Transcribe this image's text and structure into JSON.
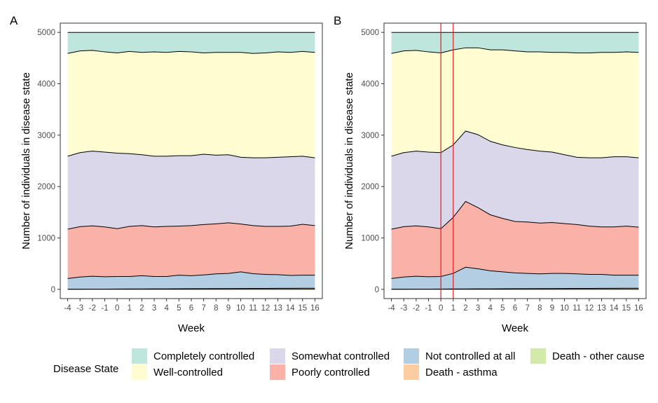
{
  "chart_data": [
    {
      "type": "area",
      "panel_label": "A",
      "stacked": true,
      "xlabel": "Week",
      "ylabel": "Number of individuals in disease state",
      "ylim": [
        0,
        5000
      ],
      "yticks": [
        0,
        1000,
        2000,
        3000,
        4000,
        5000
      ],
      "x": [
        -4,
        -3,
        -2,
        -1,
        0,
        1,
        2,
        3,
        4,
        5,
        6,
        7,
        8,
        9,
        10,
        11,
        12,
        13,
        14,
        15,
        16
      ],
      "vlines": [],
      "boundaries": {
        "Death - other cause": [
          0,
          0,
          0,
          0,
          0,
          0,
          0,
          0,
          0,
          0,
          0,
          0,
          0,
          0,
          0,
          0,
          0,
          0,
          0,
          0,
          0
        ],
        "Death - asthma": [
          2,
          3,
          4,
          5,
          6,
          7,
          8,
          9,
          10,
          11,
          12,
          13,
          14,
          15,
          16,
          17,
          18,
          19,
          20,
          21,
          22
        ],
        "Not controlled at all": [
          210,
          240,
          255,
          245,
          250,
          250,
          265,
          250,
          250,
          275,
          265,
          280,
          300,
          310,
          340,
          305,
          290,
          285,
          270,
          275,
          275
        ],
        "Poorly controlled": [
          1170,
          1220,
          1235,
          1215,
          1180,
          1225,
          1240,
          1215,
          1225,
          1230,
          1240,
          1260,
          1275,
          1295,
          1270,
          1240,
          1225,
          1225,
          1230,
          1265,
          1240
        ],
        "Somewhat controlled": [
          2590,
          2660,
          2690,
          2670,
          2650,
          2640,
          2620,
          2590,
          2590,
          2600,
          2600,
          2630,
          2610,
          2620,
          2570,
          2560,
          2560,
          2570,
          2580,
          2590,
          2560
        ],
        "Well-controlled": [
          4590,
          4640,
          4650,
          4620,
          4600,
          4630,
          4610,
          4620,
          4610,
          4630,
          4620,
          4600,
          4610,
          4610,
          4610,
          4590,
          4600,
          4620,
          4610,
          4630,
          4610
        ],
        "Completely controlled": [
          5000,
          5000,
          5000,
          5000,
          5000,
          5000,
          5000,
          5000,
          5000,
          5000,
          5000,
          5000,
          5000,
          5000,
          5000,
          5000,
          5000,
          5000,
          5000,
          5000,
          5000
        ]
      },
      "grid": false
    },
    {
      "type": "area",
      "panel_label": "B",
      "stacked": true,
      "xlabel": "Week",
      "ylabel": "Number of individuals in disease state",
      "ylim": [
        0,
        5000
      ],
      "yticks": [
        0,
        1000,
        2000,
        3000,
        4000,
        5000
      ],
      "x": [
        -4,
        -3,
        -2,
        -1,
        0,
        1,
        2,
        3,
        4,
        5,
        6,
        7,
        8,
        9,
        10,
        11,
        12,
        13,
        14,
        15,
        16
      ],
      "vlines": [
        0,
        1
      ],
      "boundaries": {
        "Death - other cause": [
          0,
          0,
          0,
          0,
          0,
          0,
          0,
          0,
          0,
          0,
          0,
          0,
          0,
          0,
          0,
          0,
          0,
          0,
          0,
          0,
          0
        ],
        "Death - asthma": [
          2,
          3,
          4,
          5,
          6,
          7,
          8,
          9,
          10,
          11,
          12,
          13,
          14,
          15,
          16,
          17,
          18,
          19,
          20,
          21,
          22
        ],
        "Not controlled at all": [
          210,
          240,
          255,
          245,
          250,
          310,
          430,
          400,
          360,
          340,
          320,
          310,
          300,
          310,
          310,
          300,
          290,
          290,
          275,
          275,
          275
        ],
        "Poorly controlled": [
          1170,
          1220,
          1235,
          1215,
          1180,
          1400,
          1710,
          1590,
          1450,
          1380,
          1320,
          1310,
          1290,
          1300,
          1280,
          1260,
          1230,
          1215,
          1215,
          1230,
          1210
        ],
        "Somewhat controlled": [
          2590,
          2660,
          2690,
          2670,
          2660,
          2810,
          3080,
          3010,
          2880,
          2810,
          2760,
          2720,
          2690,
          2670,
          2620,
          2570,
          2560,
          2560,
          2580,
          2580,
          2560
        ],
        "Well-controlled": [
          4590,
          4640,
          4650,
          4620,
          4600,
          4660,
          4700,
          4700,
          4660,
          4660,
          4640,
          4620,
          4620,
          4610,
          4610,
          4600,
          4600,
          4610,
          4610,
          4620,
          4610
        ],
        "Completely controlled": [
          5000,
          5000,
          5000,
          5000,
          5000,
          5000,
          5000,
          5000,
          5000,
          5000,
          5000,
          5000,
          5000,
          5000,
          5000,
          5000,
          5000,
          5000,
          5000,
          5000,
          5000
        ]
      },
      "grid": false
    }
  ],
  "series_order_bottom_to_top": [
    "Death - other cause",
    "Death - asthma",
    "Not controlled at all",
    "Poorly controlled",
    "Somewhat controlled",
    "Well-controlled",
    "Completely controlled"
  ],
  "colors": {
    "Completely controlled": "#bfe6dd",
    "Well-controlled": "#fefdd2",
    "Somewhat controlled": "#d9d7e9",
    "Poorly controlled": "#f9b1a8",
    "Not controlled at all": "#b3cde2",
    "Death - asthma": "#fccda0",
    "Death - other cause": "#d3eaab",
    "vline": "#e31a1c"
  },
  "legend": {
    "title": "Disease State",
    "placement": "bottom",
    "entries": [
      {
        "label": "Completely controlled",
        "color": "#bfe6dd"
      },
      {
        "label": "Well-controlled",
        "color": "#fefdd2"
      },
      {
        "label": "Somewhat controlled",
        "color": "#d9d7e9"
      },
      {
        "label": "Poorly controlled",
        "color": "#f9b1a8"
      },
      {
        "label": "Not controlled at all",
        "color": "#b3cde2"
      },
      {
        "label": "Death - asthma",
        "color": "#fccda0"
      },
      {
        "label": "Death - other cause",
        "color": "#d3eaab"
      }
    ]
  }
}
